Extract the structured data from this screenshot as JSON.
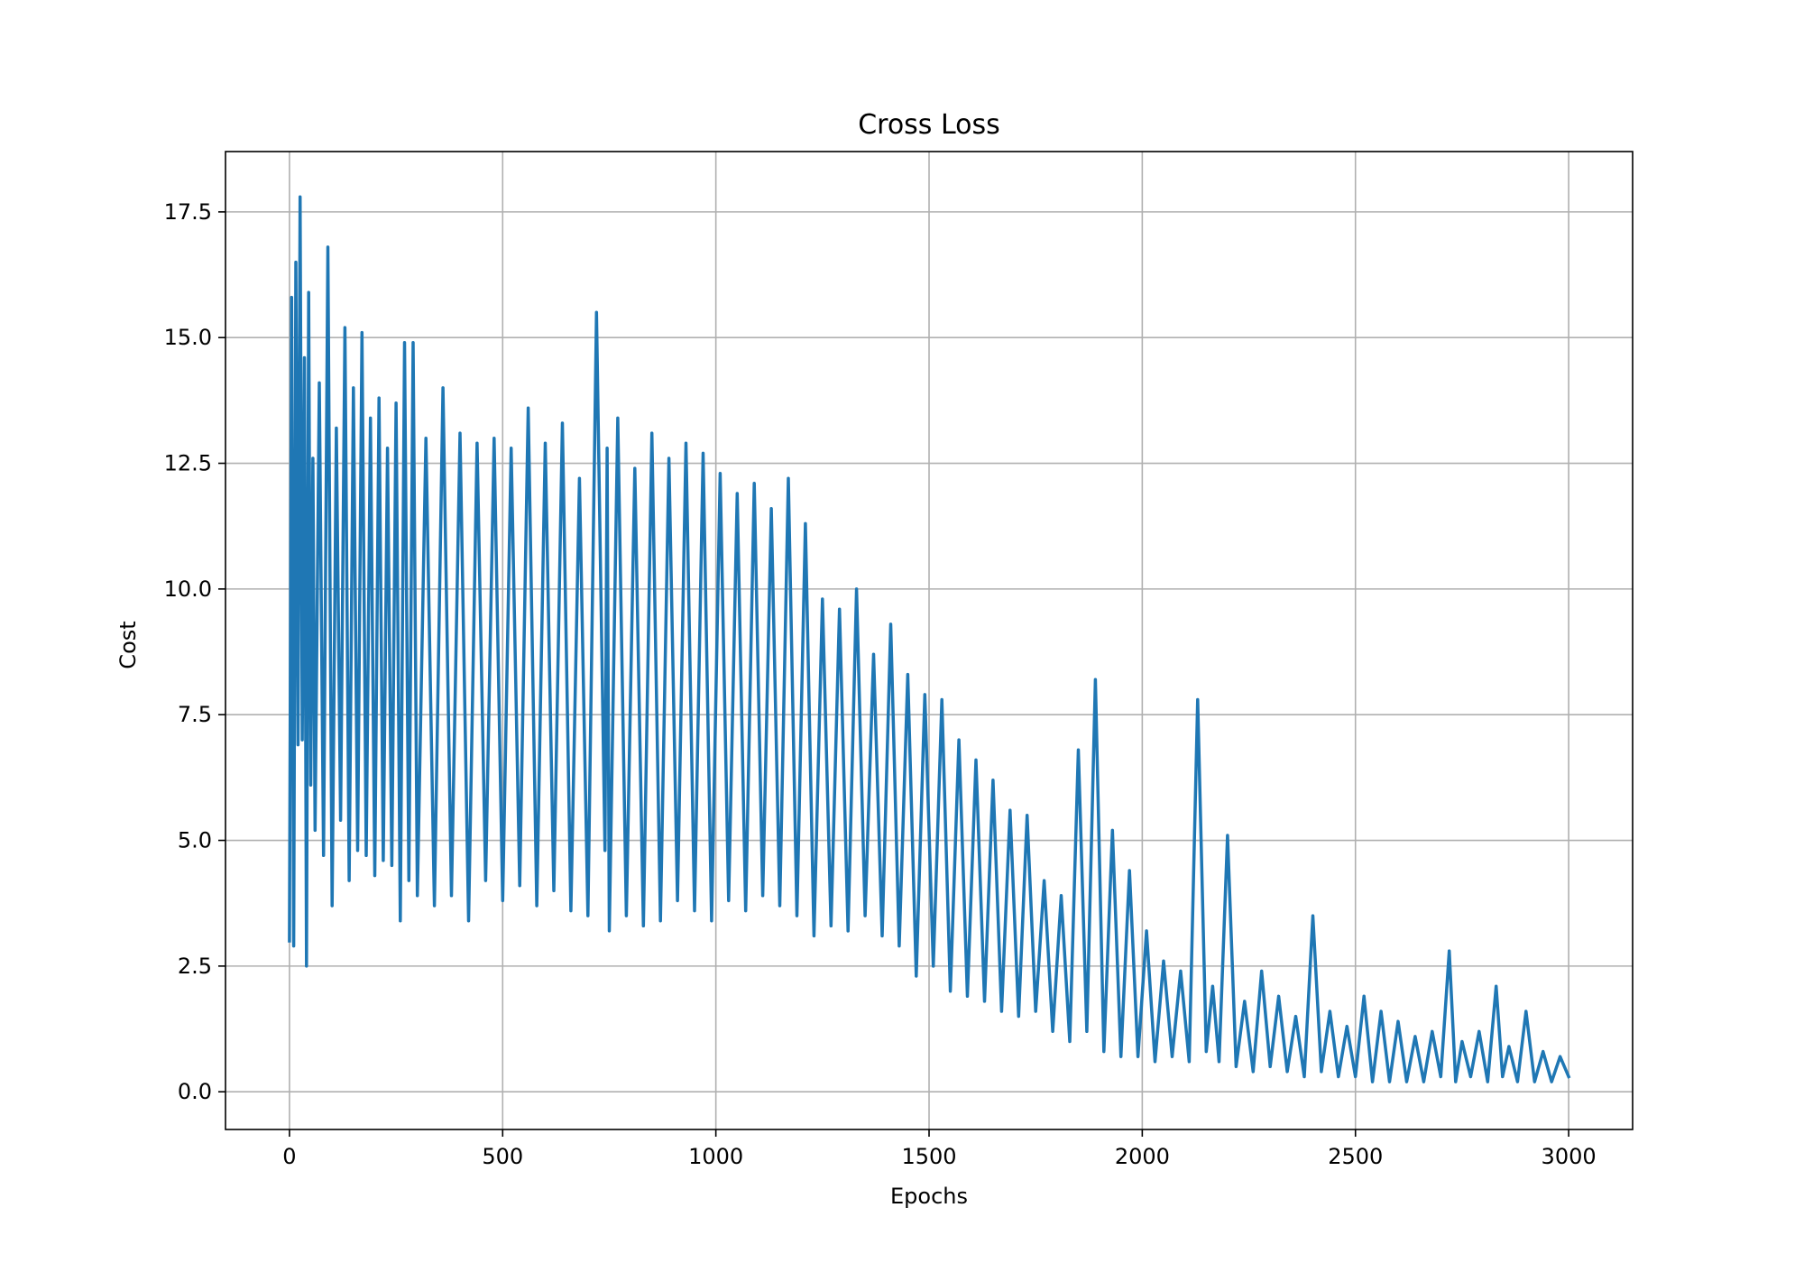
{
  "chart_data": {
    "type": "line",
    "title": "Cross Loss",
    "xlabel": "Epochs",
    "ylabel": "Cost",
    "xlim": [
      -150,
      3150
    ],
    "ylim": [
      -0.75,
      18.7
    ],
    "xticks": [
      0,
      500,
      1000,
      1500,
      2000,
      2500,
      3000
    ],
    "xtick_labels": [
      "0",
      "500",
      "1000",
      "1500",
      "2000",
      "2500",
      "3000"
    ],
    "yticks": [
      0.0,
      2.5,
      5.0,
      7.5,
      10.0,
      12.5,
      15.0,
      17.5
    ],
    "ytick_labels": [
      "0.0",
      "2.5",
      "5.0",
      "7.5",
      "10.0",
      "12.5",
      "15.0",
      "17.5"
    ],
    "grid": true,
    "legend": "none",
    "series": [
      {
        "color": "#1f77b4",
        "x": [
          0,
          5,
          10,
          15,
          20,
          25,
          30,
          35,
          40,
          45,
          50,
          55,
          60,
          70,
          80,
          90,
          100,
          110,
          120,
          130,
          140,
          150,
          160,
          170,
          180,
          190,
          200,
          210,
          220,
          230,
          240,
          250,
          260,
          270,
          280,
          290,
          300,
          320,
          340,
          360,
          380,
          400,
          420,
          440,
          460,
          480,
          500,
          520,
          540,
          560,
          580,
          600,
          620,
          640,
          660,
          680,
          700,
          720,
          740,
          745,
          750,
          770,
          790,
          810,
          830,
          850,
          870,
          890,
          910,
          930,
          950,
          970,
          990,
          1010,
          1030,
          1050,
          1070,
          1090,
          1110,
          1130,
          1150,
          1170,
          1190,
          1210,
          1230,
          1250,
          1270,
          1290,
          1310,
          1330,
          1350,
          1370,
          1390,
          1410,
          1430,
          1450,
          1470,
          1490,
          1510,
          1530,
          1550,
          1570,
          1590,
          1610,
          1630,
          1650,
          1670,
          1690,
          1710,
          1730,
          1750,
          1770,
          1790,
          1810,
          1830,
          1850,
          1870,
          1890,
          1910,
          1930,
          1950,
          1970,
          1990,
          2010,
          2030,
          2050,
          2070,
          2090,
          2110,
          2130,
          2150,
          2165,
          2180,
          2200,
          2220,
          2240,
          2260,
          2280,
          2300,
          2320,
          2340,
          2360,
          2380,
          2400,
          2420,
          2440,
          2460,
          2480,
          2500,
          2520,
          2540,
          2560,
          2580,
          2600,
          2620,
          2640,
          2660,
          2680,
          2700,
          2720,
          2735,
          2750,
          2770,
          2790,
          2810,
          2830,
          2845,
          2860,
          2880,
          2900,
          2920,
          2940,
          2960,
          2980,
          3000
        ],
        "y": [
          3.0,
          15.8,
          2.9,
          16.5,
          6.9,
          17.8,
          7.0,
          14.6,
          2.5,
          15.9,
          6.1,
          12.6,
          5.2,
          14.1,
          4.7,
          16.8,
          3.7,
          13.2,
          5.4,
          15.2,
          4.2,
          14.0,
          4.8,
          15.1,
          4.7,
          13.4,
          4.3,
          13.8,
          4.6,
          12.8,
          4.5,
          13.7,
          3.4,
          14.9,
          4.2,
          14.9,
          3.9,
          13.0,
          3.7,
          14.0,
          3.9,
          13.1,
          3.4,
          12.9,
          4.2,
          13.0,
          3.8,
          12.8,
          4.1,
          13.6,
          3.7,
          12.9,
          4.0,
          13.3,
          3.6,
          12.2,
          3.5,
          15.5,
          4.8,
          12.8,
          3.2,
          13.4,
          3.5,
          12.4,
          3.3,
          13.1,
          3.4,
          12.6,
          3.8,
          12.9,
          3.6,
          12.7,
          3.4,
          12.3,
          3.8,
          11.9,
          3.6,
          12.1,
          3.9,
          11.6,
          3.7,
          12.2,
          3.5,
          11.3,
          3.1,
          9.8,
          3.3,
          9.6,
          3.2,
          10.0,
          3.5,
          8.7,
          3.1,
          9.3,
          2.9,
          8.3,
          2.3,
          7.9,
          2.5,
          7.8,
          2.0,
          7.0,
          1.9,
          6.6,
          1.8,
          6.2,
          1.6,
          5.6,
          1.5,
          5.5,
          1.6,
          4.2,
          1.2,
          3.9,
          1.0,
          6.8,
          1.2,
          8.2,
          0.8,
          5.2,
          0.7,
          4.4,
          0.7,
          3.2,
          0.6,
          2.6,
          0.7,
          2.4,
          0.6,
          7.8,
          0.8,
          2.1,
          0.6,
          5.1,
          0.5,
          1.8,
          0.4,
          2.4,
          0.5,
          1.9,
          0.4,
          1.5,
          0.3,
          3.5,
          0.4,
          1.6,
          0.3,
          1.3,
          0.3,
          1.9,
          0.2,
          1.6,
          0.2,
          1.4,
          0.2,
          1.1,
          0.2,
          1.2,
          0.3,
          2.8,
          0.2,
          1.0,
          0.3,
          1.2,
          0.2,
          2.1,
          0.3,
          0.9,
          0.2,
          1.6,
          0.2,
          0.8,
          0.2,
          0.7,
          0.3
        ]
      }
    ]
  }
}
